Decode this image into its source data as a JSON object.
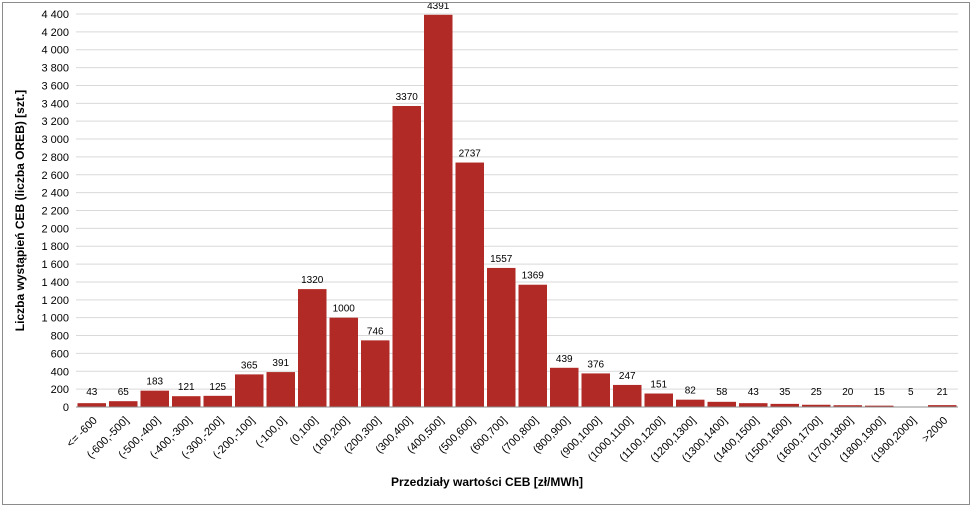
{
  "chart_data": {
    "type": "bar",
    "title": "",
    "xlabel": "Przedziały wartości CEB  [zł/MWh]",
    "ylabel": "Liczba wystąpień CEB  (liczba OREB)  [szt.]",
    "ylim": [
      0,
      4400
    ],
    "ytick_step": 200,
    "ytick_labels": [
      "0",
      "200",
      "400",
      "600",
      "800",
      "1 000",
      "1 200",
      "1 400",
      "1 600",
      "1 800",
      "2 000",
      "2 200",
      "2 400",
      "2 600",
      "2 800",
      "3 000",
      "3 200",
      "3 400",
      "3 600",
      "3 800",
      "4 000",
      "4 200",
      "4 400"
    ],
    "grid": true,
    "legend": "none",
    "bar_color": "#b22a25",
    "categories": [
      "<= -600",
      "(-600,-500]",
      "(-500,-400]",
      "(-400,-300]",
      "(-300,-200]",
      "(-200,-100]",
      "(-100,0]",
      "(0,100]",
      "(100,200]",
      "(200,300]",
      "(300,400]",
      "(400,500]",
      "(500,600]",
      "(600,700]",
      "(700,800]",
      "(800,900]",
      "(900,1000]",
      "(1000,1100]",
      "(1100,1200]",
      "(1200,1300]",
      "(1300,1400]",
      "(1400,1500]",
      "(1500,1600]",
      "(1600,1700]",
      "(1700,1800]",
      "(1800,1900]",
      "(1900,2000]",
      ">2000"
    ],
    "values": [
      43,
      65,
      183,
      121,
      125,
      365,
      391,
      1320,
      1000,
      746,
      3370,
      4391,
      2737,
      1557,
      1369,
      439,
      376,
      247,
      151,
      82,
      58,
      43,
      35,
      25,
      20,
      15,
      5,
      21
    ]
  }
}
